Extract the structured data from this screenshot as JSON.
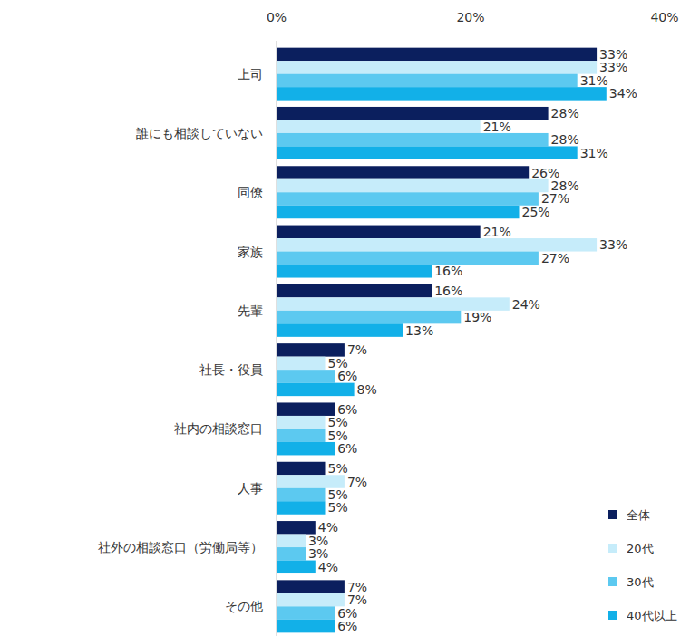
{
  "chart_data": {
    "type": "bar",
    "orientation": "horizontal",
    "data_labels": true,
    "grid": false,
    "legend": "lower right",
    "categories": [
      "上司",
      "誰にも相談していない",
      "同僚",
      "家族",
      "先輩",
      "社長・役員",
      "社内の相談窓口",
      "人事",
      "社外の相談窓口（労働局等）",
      "その他"
    ],
    "xlim": [
      0,
      40
    ],
    "xticks": [
      {
        "value": 0,
        "label": "0%"
      },
      {
        "value": 20,
        "label": "20%"
      },
      {
        "value": 40,
        "label": "40%"
      }
    ],
    "series": [
      {
        "name": "全体",
        "color": "#0b1f5e",
        "values": [
          33,
          28,
          26,
          21,
          16,
          7,
          6,
          5,
          4,
          7
        ],
        "value_labels": [
          "33%",
          "28%",
          "26%",
          "21%",
          "16%",
          "7%",
          "6%",
          "5%",
          "4%",
          "7%"
        ]
      },
      {
        "name": "20代",
        "color": "#c6ecfa",
        "values": [
          33,
          21,
          28,
          33,
          24,
          5,
          5,
          7,
          3,
          7
        ],
        "value_labels": [
          "33%",
          "21%",
          "28%",
          "33%",
          "24%",
          "5%",
          "5%",
          "7%",
          "3%",
          "7%"
        ]
      },
      {
        "name": "30代",
        "color": "#5cc9f0",
        "values": [
          31,
          28,
          27,
          27,
          19,
          6,
          5,
          5,
          3,
          6
        ],
        "value_labels": [
          "31%",
          "28%",
          "27%",
          "27%",
          "19%",
          "6%",
          "5%",
          "5%",
          "3%",
          "6%"
        ]
      },
      {
        "name": "40代以上",
        "color": "#12b0e8",
        "values": [
          34,
          31,
          25,
          16,
          13,
          8,
          6,
          5,
          4,
          6
        ],
        "value_labels": [
          "34%",
          "31%",
          "25%",
          "16%",
          "13%",
          "8%",
          "6%",
          "5%",
          "4%",
          "6%"
        ]
      }
    ]
  }
}
